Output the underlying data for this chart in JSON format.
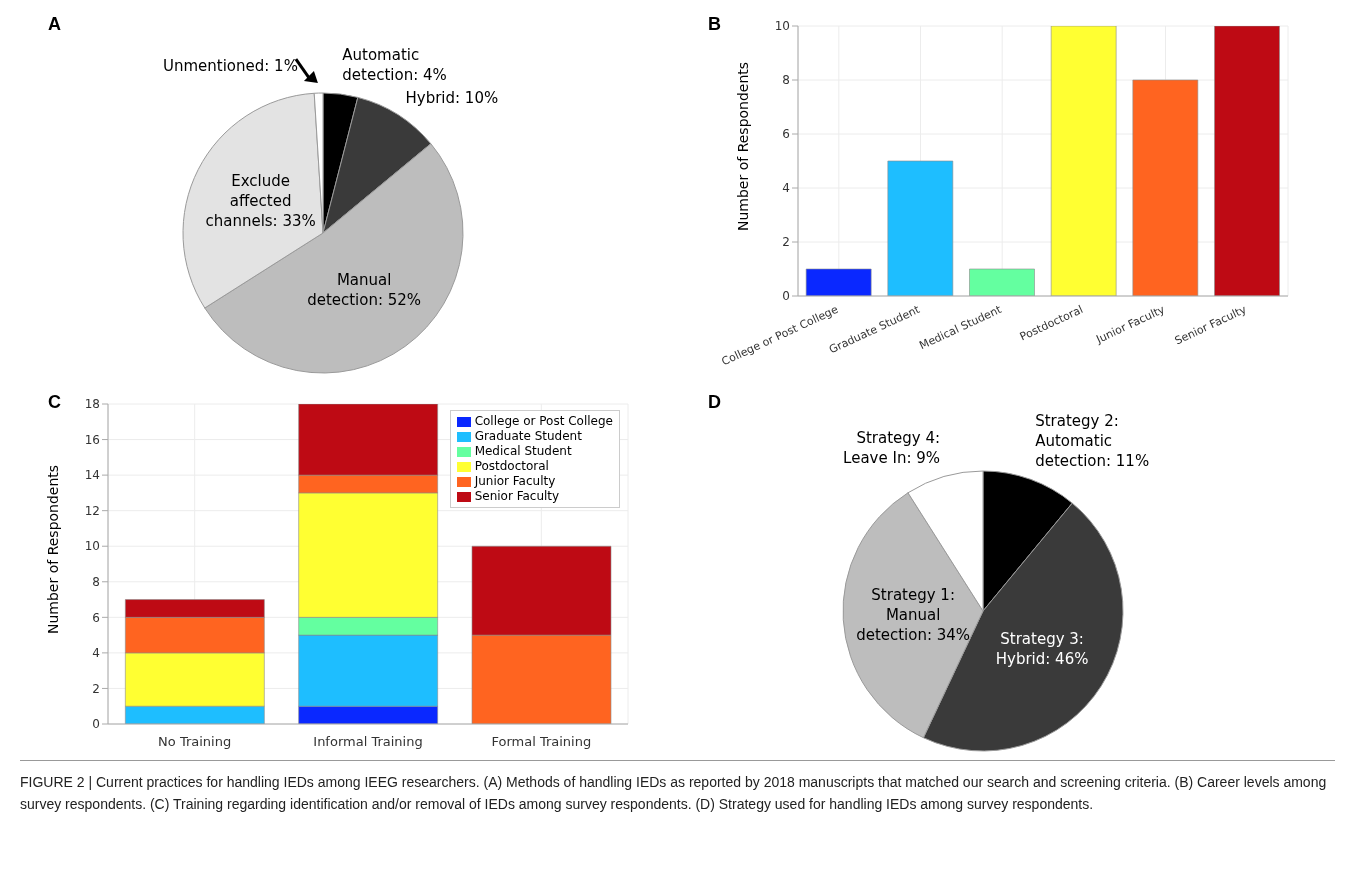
{
  "chart_data": [
    {
      "type": "pie",
      "title": "A",
      "categories": [
        "Automatic detection",
        "Hybrid",
        "Manual detection",
        "Exclude affected channels",
        "Unmentioned"
      ],
      "values": [
        4,
        10,
        52,
        33,
        1
      ],
      "value_labels": [
        "4%",
        "10%",
        "52%",
        "33%",
        "1%"
      ],
      "colors": [
        "#000000",
        "#3a3a3a",
        "#bdbdbd",
        "#e3e3e3",
        "#ffffff"
      ]
    },
    {
      "type": "bar",
      "title": "B",
      "ylabel": "Number of Respondents",
      "categories": [
        "College or Post College",
        "Graduate Student",
        "Medical Student",
        "Postdoctoral",
        "Junior Faculty",
        "Senior Faculty"
      ],
      "values": [
        1,
        5,
        1,
        10,
        8,
        10
      ],
      "colors": [
        "#0a28ff",
        "#1ebeff",
        "#64ffa0",
        "#ffff32",
        "#ff6420",
        "#be0a14"
      ],
      "ylim": [
        0,
        10
      ],
      "yticks": [
        0,
        2,
        4,
        6,
        8,
        10
      ],
      "grid": true
    },
    {
      "type": "bar",
      "title": "C",
      "ylabel": "Number of Respondents",
      "categories": [
        "No Training",
        "Informal Training",
        "Formal Training"
      ],
      "stacked": true,
      "series": [
        {
          "name": "College or Post College",
          "color": "#0a28ff",
          "values": [
            0,
            1,
            0
          ]
        },
        {
          "name": "Graduate Student",
          "color": "#1ebeff",
          "values": [
            1,
            4,
            0
          ]
        },
        {
          "name": "Medical Student",
          "color": "#64ffa0",
          "values": [
            0,
            1,
            0
          ]
        },
        {
          "name": "Postdoctoral",
          "color": "#ffff32",
          "values": [
            3,
            7,
            0
          ]
        },
        {
          "name": "Junior Faculty",
          "color": "#ff6420",
          "values": [
            2,
            1,
            5
          ]
        },
        {
          "name": "Senior Faculty",
          "color": "#be0a14",
          "values": [
            1,
            4,
            5
          ]
        }
      ],
      "ylim": [
        0,
        18
      ],
      "yticks": [
        0,
        2,
        4,
        6,
        8,
        10,
        12,
        14,
        16,
        18
      ],
      "grid": true,
      "legend": "top right"
    },
    {
      "type": "pie",
      "title": "D",
      "categories": [
        "Strategy 2: Automatic detection",
        "Strategy 3: Hybrid",
        "Strategy 1: Manual detection",
        "Strategy 4: Leave In"
      ],
      "values": [
        11,
        46,
        34,
        9
      ],
      "value_labels": [
        "11%",
        "46%",
        "34%",
        "9%"
      ],
      "colors": [
        "#000000",
        "#3a3a3a",
        "#bdbdbd",
        "#ffffff"
      ],
      "annotations": [
        "FIGURE 2 | Current practices for handling IEDs among IEEG researchers. (A) Methods of handling IEDs as reported by 2018 manuscripts that matched our search and screening criteria. (B) Career levels among survey respondents. (C) Training regarding identification and/or removal of IEDs among survey respondents. (D) Strategy used for handling IEDs among survey respondents."
      ]
    }
  ]
}
